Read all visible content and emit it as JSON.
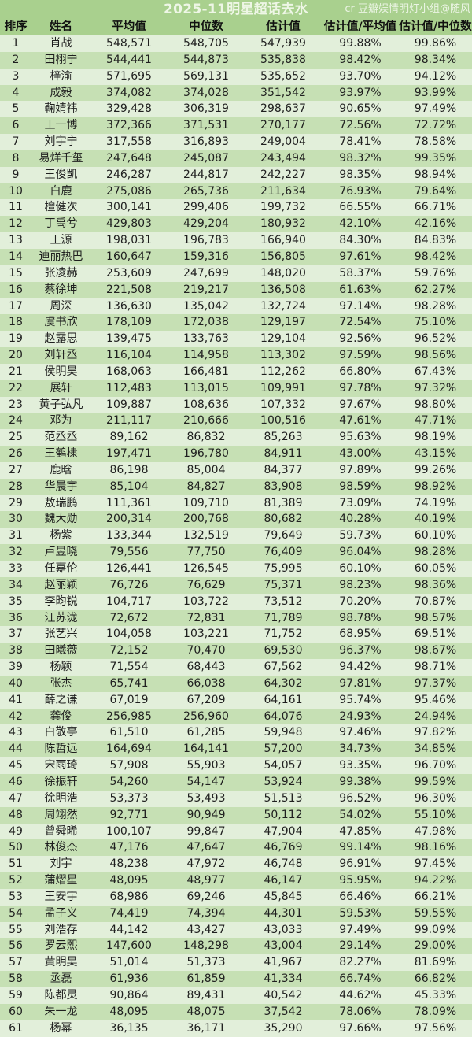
{
  "header": {
    "title": "2025-11明星超话去水",
    "watermark": "cr 豆瓣娱情明灯小组@随风"
  },
  "colors": {
    "title_bg": "#a9d08e",
    "row_dark": "#c6e0b4",
    "row_light": "#e2efda"
  },
  "table": {
    "columns": [
      "排序",
      "姓名",
      "平均值",
      "中位数",
      "估计值",
      "估计值/平均值",
      "估计值/中位数"
    ],
    "rows": [
      {
        "rank": "1",
        "name": "肖战",
        "avg": "548,571",
        "median": "548,705",
        "estimate": "547,939",
        "est_avg": "99.88%",
        "est_median": "99.86%"
      },
      {
        "rank": "2",
        "name": "田栩宁",
        "avg": "544,441",
        "median": "544,873",
        "estimate": "535,838",
        "est_avg": "98.42%",
        "est_median": "98.34%"
      },
      {
        "rank": "3",
        "name": "梓渝",
        "avg": "571,695",
        "median": "569,131",
        "estimate": "535,652",
        "est_avg": "93.70%",
        "est_median": "94.12%"
      },
      {
        "rank": "4",
        "name": "成毅",
        "avg": "374,082",
        "median": "374,028",
        "estimate": "351,542",
        "est_avg": "93.97%",
        "est_median": "93.99%"
      },
      {
        "rank": "5",
        "name": "鞠婧祎",
        "avg": "329,428",
        "median": "306,319",
        "estimate": "298,637",
        "est_avg": "90.65%",
        "est_median": "97.49%"
      },
      {
        "rank": "6",
        "name": "王一博",
        "avg": "372,366",
        "median": "371,531",
        "estimate": "270,177",
        "est_avg": "72.56%",
        "est_median": "72.72%"
      },
      {
        "rank": "7",
        "name": "刘宇宁",
        "avg": "317,558",
        "median": "316,893",
        "estimate": "249,004",
        "est_avg": "78.41%",
        "est_median": "78.58%"
      },
      {
        "rank": "8",
        "name": "易烊千玺",
        "avg": "247,648",
        "median": "245,087",
        "estimate": "243,494",
        "est_avg": "98.32%",
        "est_median": "99.35%"
      },
      {
        "rank": "9",
        "name": "王俊凯",
        "avg": "246,287",
        "median": "244,817",
        "estimate": "242,227",
        "est_avg": "98.35%",
        "est_median": "98.94%"
      },
      {
        "rank": "10",
        "name": "白鹿",
        "avg": "275,086",
        "median": "265,736",
        "estimate": "211,634",
        "est_avg": "76.93%",
        "est_median": "79.64%"
      },
      {
        "rank": "11",
        "name": "檀健次",
        "avg": "300,141",
        "median": "299,406",
        "estimate": "199,732",
        "est_avg": "66.55%",
        "est_median": "66.71%"
      },
      {
        "rank": "12",
        "name": "丁禹兮",
        "avg": "429,803",
        "median": "429,204",
        "estimate": "180,932",
        "est_avg": "42.10%",
        "est_median": "42.16%"
      },
      {
        "rank": "13",
        "name": "王源",
        "avg": "198,031",
        "median": "196,783",
        "estimate": "166,940",
        "est_avg": "84.30%",
        "est_median": "84.83%"
      },
      {
        "rank": "14",
        "name": "迪丽热巴",
        "avg": "160,647",
        "median": "159,316",
        "estimate": "156,805",
        "est_avg": "97.61%",
        "est_median": "98.42%"
      },
      {
        "rank": "15",
        "name": "张凌赫",
        "avg": "253,609",
        "median": "247,699",
        "estimate": "148,020",
        "est_avg": "58.37%",
        "est_median": "59.76%"
      },
      {
        "rank": "16",
        "name": "蔡徐坤",
        "avg": "221,508",
        "median": "219,217",
        "estimate": "136,508",
        "est_avg": "61.63%",
        "est_median": "62.27%"
      },
      {
        "rank": "17",
        "name": "周深",
        "avg": "136,630",
        "median": "135,042",
        "estimate": "132,724",
        "est_avg": "97.14%",
        "est_median": "98.28%"
      },
      {
        "rank": "18",
        "name": "虞书欣",
        "avg": "178,109",
        "median": "172,038",
        "estimate": "129,197",
        "est_avg": "72.54%",
        "est_median": "75.10%"
      },
      {
        "rank": "19",
        "name": "赵露思",
        "avg": "139,475",
        "median": "133,763",
        "estimate": "129,104",
        "est_avg": "92.56%",
        "est_median": "96.52%"
      },
      {
        "rank": "20",
        "name": "刘轩丞",
        "avg": "116,104",
        "median": "114,958",
        "estimate": "113,302",
        "est_avg": "97.59%",
        "est_median": "98.56%"
      },
      {
        "rank": "21",
        "name": "侯明昊",
        "avg": "168,063",
        "median": "166,481",
        "estimate": "112,262",
        "est_avg": "66.80%",
        "est_median": "67.43%"
      },
      {
        "rank": "22",
        "name": "展轩",
        "avg": "112,483",
        "median": "113,015",
        "estimate": "109,991",
        "est_avg": "97.78%",
        "est_median": "97.32%"
      },
      {
        "rank": "23",
        "name": "黄子弘凡",
        "avg": "109,887",
        "median": "108,636",
        "estimate": "107,332",
        "est_avg": "97.67%",
        "est_median": "98.80%"
      },
      {
        "rank": "24",
        "name": "邓为",
        "avg": "211,117",
        "median": "210,666",
        "estimate": "100,516",
        "est_avg": "47.61%",
        "est_median": "47.71%"
      },
      {
        "rank": "25",
        "name": "范丞丞",
        "avg": "89,162",
        "median": "86,832",
        "estimate": "85,263",
        "est_avg": "95.63%",
        "est_median": "98.19%"
      },
      {
        "rank": "26",
        "name": "王鹤棣",
        "avg": "197,471",
        "median": "196,780",
        "estimate": "84,911",
        "est_avg": "43.00%",
        "est_median": "43.15%"
      },
      {
        "rank": "27",
        "name": "鹿晗",
        "avg": "86,198",
        "median": "85,004",
        "estimate": "84,377",
        "est_avg": "97.89%",
        "est_median": "99.26%"
      },
      {
        "rank": "28",
        "name": "华晨宇",
        "avg": "85,104",
        "median": "84,827",
        "estimate": "83,908",
        "est_avg": "98.59%",
        "est_median": "98.92%"
      },
      {
        "rank": "29",
        "name": "敖瑞鹏",
        "avg": "111,361",
        "median": "109,710",
        "estimate": "81,389",
        "est_avg": "73.09%",
        "est_median": "74.19%"
      },
      {
        "rank": "30",
        "name": "魏大勋",
        "avg": "200,314",
        "median": "200,768",
        "estimate": "80,682",
        "est_avg": "40.28%",
        "est_median": "40.19%"
      },
      {
        "rank": "31",
        "name": "杨紫",
        "avg": "133,344",
        "median": "132,519",
        "estimate": "79,649",
        "est_avg": "59.73%",
        "est_median": "60.10%"
      },
      {
        "rank": "32",
        "name": "卢昱晓",
        "avg": "79,556",
        "median": "77,750",
        "estimate": "76,409",
        "est_avg": "96.04%",
        "est_median": "98.28%"
      },
      {
        "rank": "33",
        "name": "任嘉伦",
        "avg": "126,441",
        "median": "126,545",
        "estimate": "75,995",
        "est_avg": "60.10%",
        "est_median": "60.05%"
      },
      {
        "rank": "34",
        "name": "赵丽颖",
        "avg": "76,726",
        "median": "76,629",
        "estimate": "75,371",
        "est_avg": "98.23%",
        "est_median": "98.36%"
      },
      {
        "rank": "35",
        "name": "李昀锐",
        "avg": "104,717",
        "median": "103,722",
        "estimate": "73,512",
        "est_avg": "70.20%",
        "est_median": "70.87%"
      },
      {
        "rank": "36",
        "name": "汪苏泷",
        "avg": "72,672",
        "median": "72,831",
        "estimate": "71,789",
        "est_avg": "98.78%",
        "est_median": "98.57%"
      },
      {
        "rank": "37",
        "name": "张艺兴",
        "avg": "104,058",
        "median": "103,221",
        "estimate": "71,752",
        "est_avg": "68.95%",
        "est_median": "69.51%"
      },
      {
        "rank": "38",
        "name": "田曦薇",
        "avg": "72,152",
        "median": "70,470",
        "estimate": "69,530",
        "est_avg": "96.37%",
        "est_median": "98.67%"
      },
      {
        "rank": "39",
        "name": "杨颖",
        "avg": "71,554",
        "median": "68,443",
        "estimate": "67,562",
        "est_avg": "94.42%",
        "est_median": "98.71%"
      },
      {
        "rank": "40",
        "name": "张杰",
        "avg": "65,741",
        "median": "66,038",
        "estimate": "64,302",
        "est_avg": "97.81%",
        "est_median": "97.37%"
      },
      {
        "rank": "41",
        "name": "薛之谦",
        "avg": "67,019",
        "median": "67,209",
        "estimate": "64,161",
        "est_avg": "95.74%",
        "est_median": "95.46%"
      },
      {
        "rank": "42",
        "name": "龚俊",
        "avg": "256,985",
        "median": "256,960",
        "estimate": "64,076",
        "est_avg": "24.93%",
        "est_median": "24.94%"
      },
      {
        "rank": "43",
        "name": "白敬亭",
        "avg": "61,510",
        "median": "61,285",
        "estimate": "59,948",
        "est_avg": "97.46%",
        "est_median": "97.82%"
      },
      {
        "rank": "44",
        "name": "陈哲远",
        "avg": "164,694",
        "median": "164,141",
        "estimate": "57,200",
        "est_avg": "34.73%",
        "est_median": "34.85%"
      },
      {
        "rank": "45",
        "name": "宋雨琦",
        "avg": "57,908",
        "median": "55,903",
        "estimate": "54,057",
        "est_avg": "93.35%",
        "est_median": "96.70%"
      },
      {
        "rank": "46",
        "name": "徐振轩",
        "avg": "54,260",
        "median": "54,147",
        "estimate": "53,924",
        "est_avg": "99.38%",
        "est_median": "99.59%"
      },
      {
        "rank": "47",
        "name": "徐明浩",
        "avg": "53,373",
        "median": "53,493",
        "estimate": "51,513",
        "est_avg": "96.52%",
        "est_median": "96.30%"
      },
      {
        "rank": "48",
        "name": "周翊然",
        "avg": "92,771",
        "median": "90,949",
        "estimate": "50,112",
        "est_avg": "54.02%",
        "est_median": "55.10%"
      },
      {
        "rank": "49",
        "name": "曾舜晞",
        "avg": "100,107",
        "median": "99,847",
        "estimate": "47,904",
        "est_avg": "47.85%",
        "est_median": "47.98%"
      },
      {
        "rank": "50",
        "name": "林俊杰",
        "avg": "47,176",
        "median": "47,647",
        "estimate": "46,769",
        "est_avg": "99.14%",
        "est_median": "98.16%"
      },
      {
        "rank": "51",
        "name": "刘宇",
        "avg": "48,238",
        "median": "47,972",
        "estimate": "46,748",
        "est_avg": "96.91%",
        "est_median": "97.45%"
      },
      {
        "rank": "52",
        "name": "蒲熠星",
        "avg": "48,095",
        "median": "48,977",
        "estimate": "46,147",
        "est_avg": "95.95%",
        "est_median": "94.22%"
      },
      {
        "rank": "53",
        "name": "王安宇",
        "avg": "68,986",
        "median": "69,246",
        "estimate": "45,845",
        "est_avg": "66.46%",
        "est_median": "66.21%"
      },
      {
        "rank": "54",
        "name": "孟子义",
        "avg": "74,419",
        "median": "74,394",
        "estimate": "44,301",
        "est_avg": "59.53%",
        "est_median": "59.55%"
      },
      {
        "rank": "55",
        "name": "刘浩存",
        "avg": "44,142",
        "median": "43,427",
        "estimate": "43,033",
        "est_avg": "97.49%",
        "est_median": "99.09%"
      },
      {
        "rank": "56",
        "name": "罗云熙",
        "avg": "147,600",
        "median": "148,298",
        "estimate": "43,004",
        "est_avg": "29.14%",
        "est_median": "29.00%"
      },
      {
        "rank": "57",
        "name": "黄明昊",
        "avg": "51,014",
        "median": "51,373",
        "estimate": "41,967",
        "est_avg": "82.27%",
        "est_median": "81.69%"
      },
      {
        "rank": "58",
        "name": "丞磊",
        "avg": "61,936",
        "median": "61,859",
        "estimate": "41,334",
        "est_avg": "66.74%",
        "est_median": "66.82%"
      },
      {
        "rank": "59",
        "name": "陈都灵",
        "avg": "90,864",
        "median": "89,431",
        "estimate": "40,542",
        "est_avg": "44.62%",
        "est_median": "45.33%"
      },
      {
        "rank": "60",
        "name": "朱一龙",
        "avg": "48,095",
        "median": "48,075",
        "estimate": "37,542",
        "est_avg": "78.06%",
        "est_median": "78.09%"
      },
      {
        "rank": "61",
        "name": "杨幂",
        "avg": "36,135",
        "median": "36,171",
        "estimate": "35,290",
        "est_avg": "97.66%",
        "est_median": "97.56%"
      }
    ]
  }
}
